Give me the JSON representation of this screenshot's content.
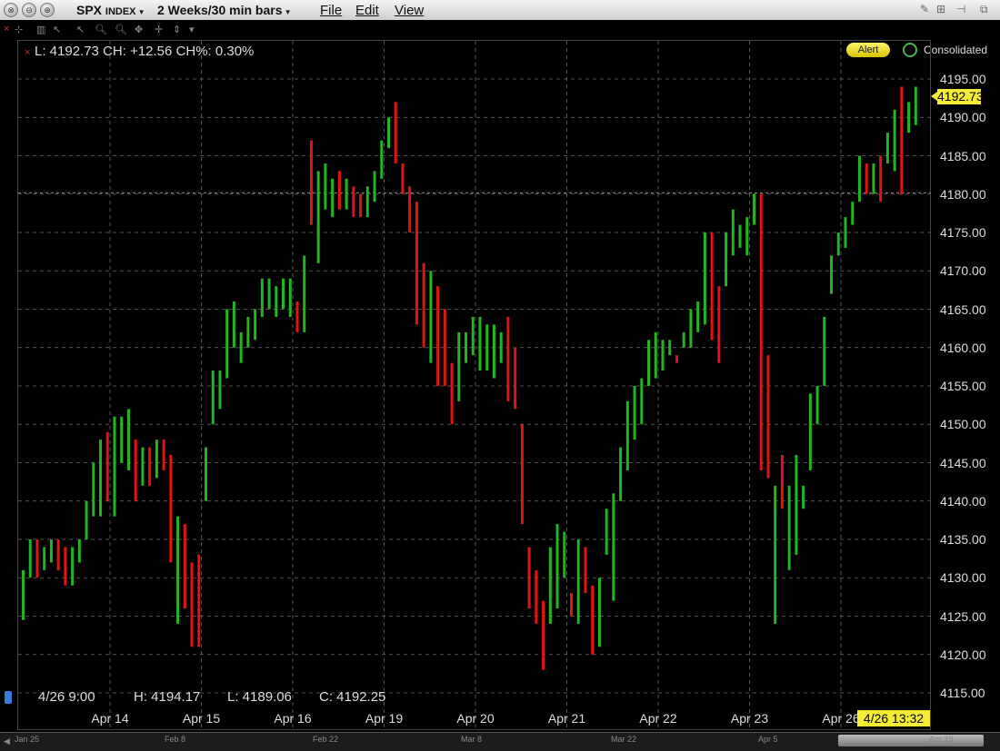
{
  "window": {
    "symbol": "SPX",
    "symbol_type": "INDEX",
    "timeframe": "2 Weeks/30 min bars",
    "menus": [
      "File",
      "Edit",
      "View"
    ],
    "alert_label": "Alert",
    "consolidated_label": "Consolidated"
  },
  "readouts": {
    "top": "L: 4192.73 CH: +12.56 CH%: 0.30%",
    "bottom_time": "4/26 9:00",
    "bottom_high": "H: 4194.17",
    "bottom_low": "L: 4189.06",
    "bottom_close": "C: 4192.25"
  },
  "last_price_tag": "4192.73",
  "cursor_time_tag": "4/26 13:32",
  "navigator": {
    "labels": [
      "Jan 25",
      "Feb 8",
      "Feb 22",
      "Mar 8",
      "Mar 22",
      "Apr 5",
      "Apr 19"
    ]
  },
  "colors": {
    "up": "#22b422",
    "down": "#e01414",
    "background": "#000000",
    "grid": "#6a6a6a",
    "price_tag": "#f5ec38"
  },
  "chart_data": {
    "type": "ohlc_bar",
    "xlabel": "",
    "ylabel": "",
    "ylim": [
      4113,
      4198
    ],
    "x_ticks": [
      "Apr 14",
      "Apr 15",
      "Apr 16",
      "Apr 19",
      "Apr 20",
      "Apr 21",
      "Apr 22",
      "Apr 23",
      "Apr 26"
    ],
    "y_ticks": [
      "4115.00",
      "4120.00",
      "4125.00",
      "4130.00",
      "4135.00",
      "4140.00",
      "4145.00",
      "4150.00",
      "4155.00",
      "4160.00",
      "4165.00",
      "4170.00",
      "4175.00",
      "4180.00",
      "4185.00",
      "4190.00",
      "4195.00"
    ],
    "reference_line": 4180.17,
    "bars_per_day": 13,
    "bars": [
      [
        4131,
        4124.5,
        "up"
      ],
      [
        4135,
        4130,
        "up"
      ],
      [
        4135,
        4130,
        "down"
      ],
      [
        4134,
        4131,
        "up"
      ],
      [
        4135,
        4132,
        "up"
      ],
      [
        4135,
        4131,
        "down"
      ],
      [
        4134,
        4129,
        "down"
      ],
      [
        4134,
        4129,
        "up"
      ],
      [
        4135,
        4132,
        "up"
      ],
      [
        4140,
        4135,
        "up"
      ],
      [
        4145,
        4138,
        "up"
      ],
      [
        4148,
        4138,
        "up"
      ],
      [
        4149,
        4140,
        "down"
      ],
      [
        4151,
        4138,
        "up"
      ],
      [
        4151,
        4145,
        "up"
      ],
      [
        4152,
        4144,
        "up"
      ],
      [
        4148,
        4140,
        "down"
      ],
      [
        4147,
        4142,
        "up"
      ],
      [
        4147,
        4142,
        "down"
      ],
      [
        4148,
        4143,
        "up"
      ],
      [
        4148,
        4144,
        "down"
      ],
      [
        4146,
        4132,
        "down"
      ],
      [
        4138,
        4124,
        "up"
      ],
      [
        4137,
        4126,
        "down"
      ],
      [
        4132,
        4121,
        "down"
      ],
      [
        4133,
        4121,
        "down"
      ],
      [
        4147,
        4140,
        "up"
      ],
      [
        4157,
        4150,
        "up"
      ],
      [
        4157,
        4152,
        "up"
      ],
      [
        4165,
        4156,
        "up"
      ],
      [
        4166,
        4160,
        "up"
      ],
      [
        4162,
        4158,
        "up"
      ],
      [
        4164,
        4160,
        "up"
      ],
      [
        4165,
        4161,
        "up"
      ],
      [
        4169,
        4164,
        "up"
      ],
      [
        4169,
        4165,
        "up"
      ],
      [
        4168,
        4164,
        "up"
      ],
      [
        4169,
        4165,
        "up"
      ],
      [
        4169,
        4164,
        "up"
      ],
      [
        4166,
        4162,
        "down"
      ],
      [
        4172,
        4162,
        "up"
      ],
      [
        4187,
        4176,
        "down"
      ],
      [
        4183,
        4171,
        "up"
      ],
      [
        4184,
        4178,
        "up"
      ],
      [
        4182,
        4177,
        "up"
      ],
      [
        4183,
        4178,
        "down"
      ],
      [
        4182,
        4178,
        "up"
      ],
      [
        4181,
        4177,
        "down"
      ],
      [
        4180,
        4177,
        "down"
      ],
      [
        4181,
        4177,
        "up"
      ],
      [
        4183,
        4179,
        "up"
      ],
      [
        4187,
        4182,
        "up"
      ],
      [
        4190,
        4186,
        "up"
      ],
      [
        4192,
        4184,
        "down"
      ],
      [
        4184,
        4180,
        "down"
      ],
      [
        4181,
        4175,
        "down"
      ],
      [
        4179,
        4163,
        "down"
      ],
      [
        4171,
        4160,
        "down"
      ],
      [
        4170,
        4158,
        "up"
      ],
      [
        4168,
        4155,
        "down"
      ],
      [
        4165,
        4155,
        "down"
      ],
      [
        4158,
        4150,
        "down"
      ],
      [
        4162,
        4153,
        "up"
      ],
      [
        4162,
        4158,
        "up"
      ],
      [
        4164,
        4159,
        "up"
      ],
      [
        4164,
        4157,
        "up"
      ],
      [
        4163,
        4157,
        "up"
      ],
      [
        4163,
        4156,
        "up"
      ],
      [
        4162,
        4158,
        "up"
      ],
      [
        4164,
        4153,
        "down"
      ],
      [
        4160,
        4152,
        "down"
      ],
      [
        4150,
        4137,
        "down"
      ],
      [
        4134,
        4126,
        "down"
      ],
      [
        4131,
        4124,
        "down"
      ],
      [
        4127,
        4118,
        "down"
      ],
      [
        4134,
        4124,
        "up"
      ],
      [
        4137,
        4126,
        "up"
      ],
      [
        4136,
        4130,
        "up"
      ],
      [
        4128,
        4125,
        "down"
      ],
      [
        4135,
        4124,
        "up"
      ],
      [
        4134,
        4128,
        "down"
      ],
      [
        4129,
        4120,
        "down"
      ],
      [
        4130,
        4121,
        "up"
      ],
      [
        4139,
        4133,
        "up"
      ],
      [
        4141,
        4127,
        "up"
      ],
      [
        4147,
        4140,
        "up"
      ],
      [
        4153,
        4144,
        "up"
      ],
      [
        4155,
        4148,
        "up"
      ],
      [
        4156,
        4150,
        "up"
      ],
      [
        4161,
        4155,
        "up"
      ],
      [
        4162,
        4156,
        "up"
      ],
      [
        4161,
        4157,
        "up"
      ],
      [
        4161,
        4159,
        "up"
      ],
      [
        4159,
        4158,
        "down"
      ],
      [
        4162,
        4160,
        "up"
      ],
      [
        4165,
        4160,
        "up"
      ],
      [
        4166,
        4162,
        "up"
      ],
      [
        4175,
        4163,
        "up"
      ],
      [
        4175,
        4161,
        "down"
      ],
      [
        4168,
        4158,
        "down"
      ],
      [
        4175,
        4168,
        "up"
      ],
      [
        4178,
        4172,
        "up"
      ],
      [
        4176,
        4173,
        "up"
      ],
      [
        4177,
        4172,
        "up"
      ],
      [
        4180,
        4176,
        "up"
      ],
      [
        4180,
        4144,
        "down"
      ],
      [
        4159,
        4143,
        "down"
      ],
      [
        4142,
        4124,
        "up"
      ],
      [
        4146,
        4139,
        "down"
      ],
      [
        4142,
        4131,
        "up"
      ],
      [
        4146,
        4133,
        "up"
      ],
      [
        4142,
        4139,
        "up"
      ],
      [
        4154,
        4144,
        "up"
      ],
      [
        4155,
        4150,
        "up"
      ],
      [
        4164,
        4155,
        "up"
      ],
      [
        4172,
        4167,
        "up"
      ],
      [
        4175,
        4172,
        "up"
      ],
      [
        4177,
        4173,
        "up"
      ],
      [
        4179,
        4176,
        "up"
      ],
      [
        4185,
        4179,
        "up"
      ],
      [
        4184,
        4180,
        "down"
      ],
      [
        4184,
        4180,
        "up"
      ],
      [
        4185,
        4179,
        "down"
      ],
      [
        4188,
        4184,
        "up"
      ],
      [
        4191,
        4183,
        "up"
      ],
      [
        4194,
        4180,
        "down"
      ],
      [
        4192,
        4188,
        "up"
      ],
      [
        4194,
        4189,
        "up"
      ]
    ]
  }
}
